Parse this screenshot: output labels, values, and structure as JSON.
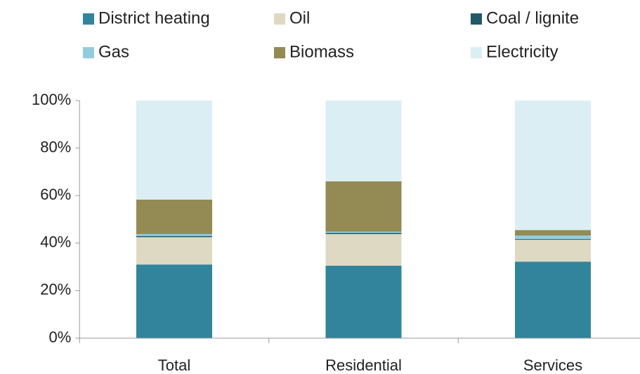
{
  "chart_data": {
    "type": "stacked_bar",
    "categories": [
      "Total",
      "Residential",
      "Services"
    ],
    "series": [
      {
        "name": "District heating",
        "color": "#31849b",
        "values": [
          31,
          30.5,
          32.2
        ]
      },
      {
        "name": "Oil",
        "color": "#ddd9c3",
        "values": [
          11.5,
          13.3,
          9.2
        ]
      },
      {
        "name": "Coal / lignite",
        "color": "#215968",
        "values": [
          0.5,
          0.5,
          0.3
        ]
      },
      {
        "name": "Gas",
        "color": "#93cddd",
        "values": [
          0.8,
          0.5,
          1.5
        ]
      },
      {
        "name": "Biomass",
        "color": "#948a54",
        "values": [
          14.5,
          21.2,
          2.3
        ]
      },
      {
        "name": "Electricity",
        "color": "#dbeef4",
        "values": [
          41.7,
          34,
          54.5
        ]
      }
    ],
    "ylim": [
      0,
      100
    ],
    "yticks": [
      {
        "value": 0,
        "label": "0%"
      },
      {
        "value": 20,
        "label": "20%"
      },
      {
        "value": 40,
        "label": "40%"
      },
      {
        "value": 60,
        "label": "60%"
      },
      {
        "value": 80,
        "label": "80%"
      },
      {
        "value": 100,
        "label": "100%"
      }
    ],
    "grid": false
  }
}
